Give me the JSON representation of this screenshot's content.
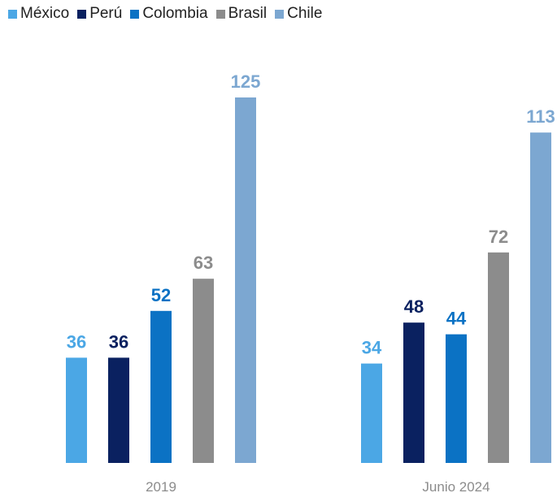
{
  "chart_data": {
    "type": "bar",
    "categories": [
      "2019",
      "Junio 2024"
    ],
    "series": [
      {
        "name": "México",
        "color": "#4BA7E5",
        "values": [
          36,
          34
        ]
      },
      {
        "name": "Perú",
        "color": "#0A2160",
        "values": [
          36,
          48
        ]
      },
      {
        "name": "Colombia",
        "color": "#0B72C4",
        "values": [
          52,
          44
        ]
      },
      {
        "name": "Brasil",
        "color": "#8C8C8C",
        "values": [
          63,
          72
        ]
      },
      {
        "name": "Chile",
        "color": "#7CA7D1",
        "values": [
          125,
          113
        ]
      }
    ],
    "legend_position": "top-left",
    "data_labels": true,
    "ylim": [
      0,
      125
    ],
    "grid": false
  }
}
